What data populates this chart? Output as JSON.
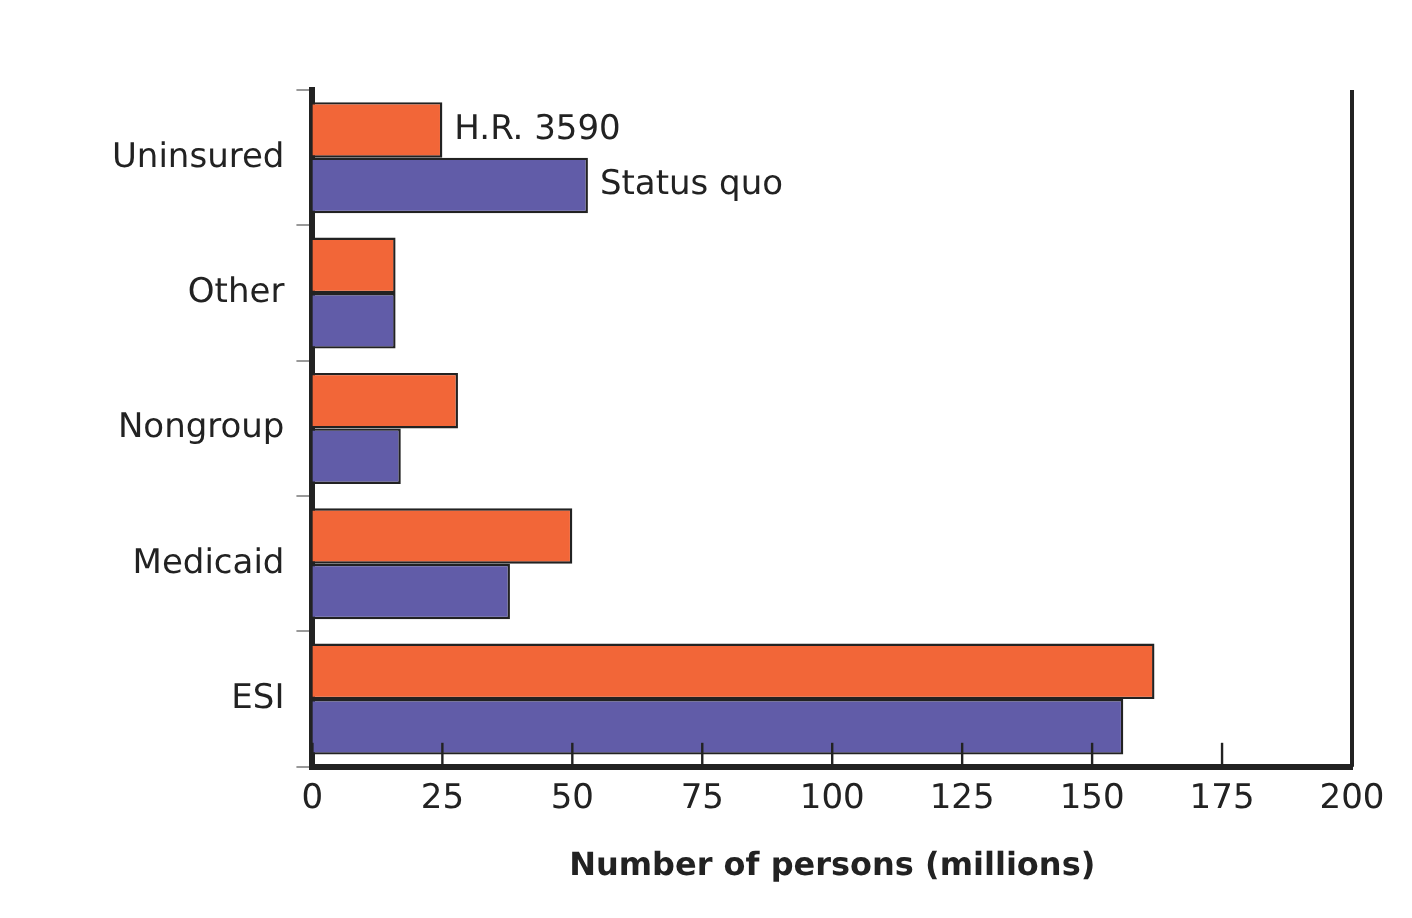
{
  "chart_data": {
    "type": "bar",
    "orientation": "horizontal",
    "xlabel": "Number of persons (millions)",
    "categories": [
      "Uninsured",
      "Other",
      "Nongroup",
      "Medicaid",
      "ESI"
    ],
    "series": [
      {
        "name": "H.R. 3590",
        "color": "#f26638",
        "values": [
          25,
          16,
          28,
          50,
          162
        ]
      },
      {
        "name": "Status quo",
        "color": "#615ca8",
        "values": [
          53,
          16,
          17,
          38,
          156
        ]
      }
    ],
    "xlim": [
      0,
      200
    ],
    "xticks": [
      0,
      25,
      50,
      75,
      100,
      125,
      150,
      175,
      200
    ],
    "grid": false,
    "legend": false
  }
}
